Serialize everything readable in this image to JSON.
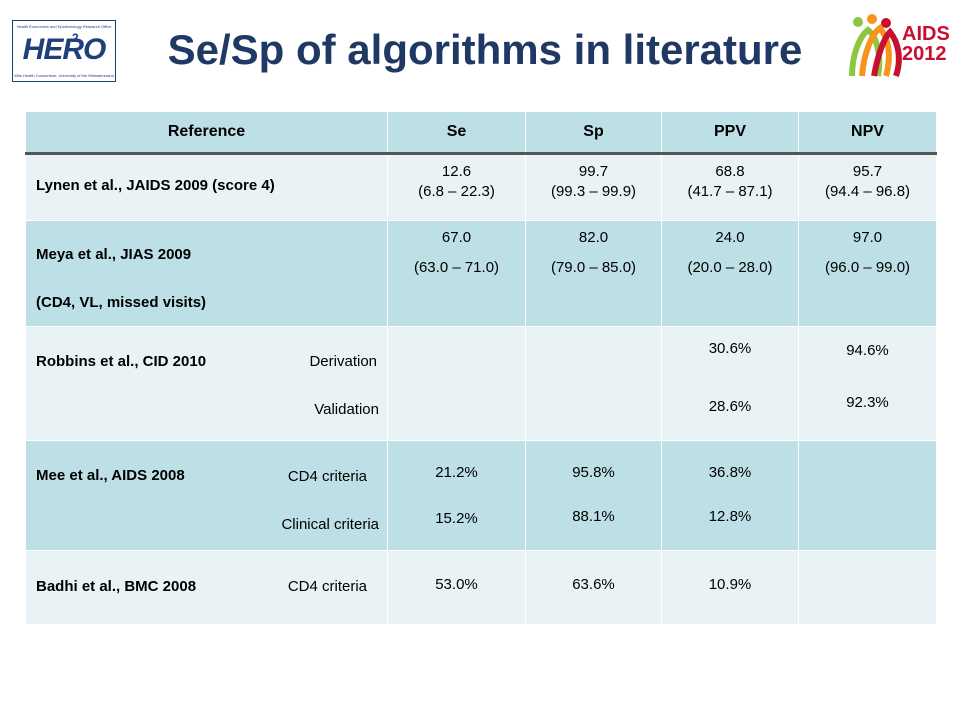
{
  "logos": {
    "hero": {
      "word": "HERO",
      "superscript": "2",
      "tagline_top": "Health Economics and Epidemiology Research Office",
      "tagline_bottom": "Wits Health Consortium, University of the Witwatersrand"
    },
    "aids": {
      "line1": "AIDS",
      "line2": "2012"
    }
  },
  "title": "Se/Sp of algorithms in literature",
  "table": {
    "headers": [
      "Reference",
      "Se",
      "Sp",
      "PPV",
      "NPV"
    ],
    "rows": [
      {
        "ref": "Lynen et al., JAIDS 2009 (score 4)",
        "se": [
          "12.6",
          "(6.8 – 22.3)"
        ],
        "sp": [
          "99.7",
          "(99.3 – 99.9)"
        ],
        "ppv": [
          "68.8",
          "(41.7 – 87.1)"
        ],
        "npv": [
          "95.7",
          "(94.4 – 96.8)"
        ]
      },
      {
        "ref": "Meya et al., JIAS 2009",
        "ref2": "(CD4, VL, missed visits)",
        "se": [
          "67.0",
          "(63.0 – 71.0)"
        ],
        "sp": [
          "82.0",
          "(79.0 – 85.0)"
        ],
        "ppv": [
          "24.0",
          "(20.0 – 28.0)"
        ],
        "npv": [
          "97.0",
          "(96.0 – 99.0)"
        ]
      },
      {
        "ref": "Robbins et al., CID 2010",
        "sub1": "Derivation",
        "sub2": "Validation",
        "ppv": [
          "30.6%",
          "28.6%"
        ],
        "npv": [
          "94.6%",
          "92.3%"
        ]
      },
      {
        "ref": "Mee et al., AIDS 2008",
        "sub1": "CD4 criteria",
        "sub2": "Clinical criteria",
        "se": [
          "21.2%",
          "15.2%"
        ],
        "sp": [
          "95.8%",
          "88.1%"
        ],
        "ppv": [
          "36.8%",
          "12.8%"
        ]
      },
      {
        "ref": "Badhi et al., BMC 2008",
        "sub1": "CD4 criteria",
        "se": [
          "53.0%"
        ],
        "sp": [
          "63.6%"
        ],
        "ppv": [
          "10.9%"
        ]
      }
    ]
  },
  "colors": {
    "header_bg": "#bde0e6",
    "row_light": "#e9f3f5",
    "row_dark": "#bde0e6",
    "title": "#1f3864"
  }
}
